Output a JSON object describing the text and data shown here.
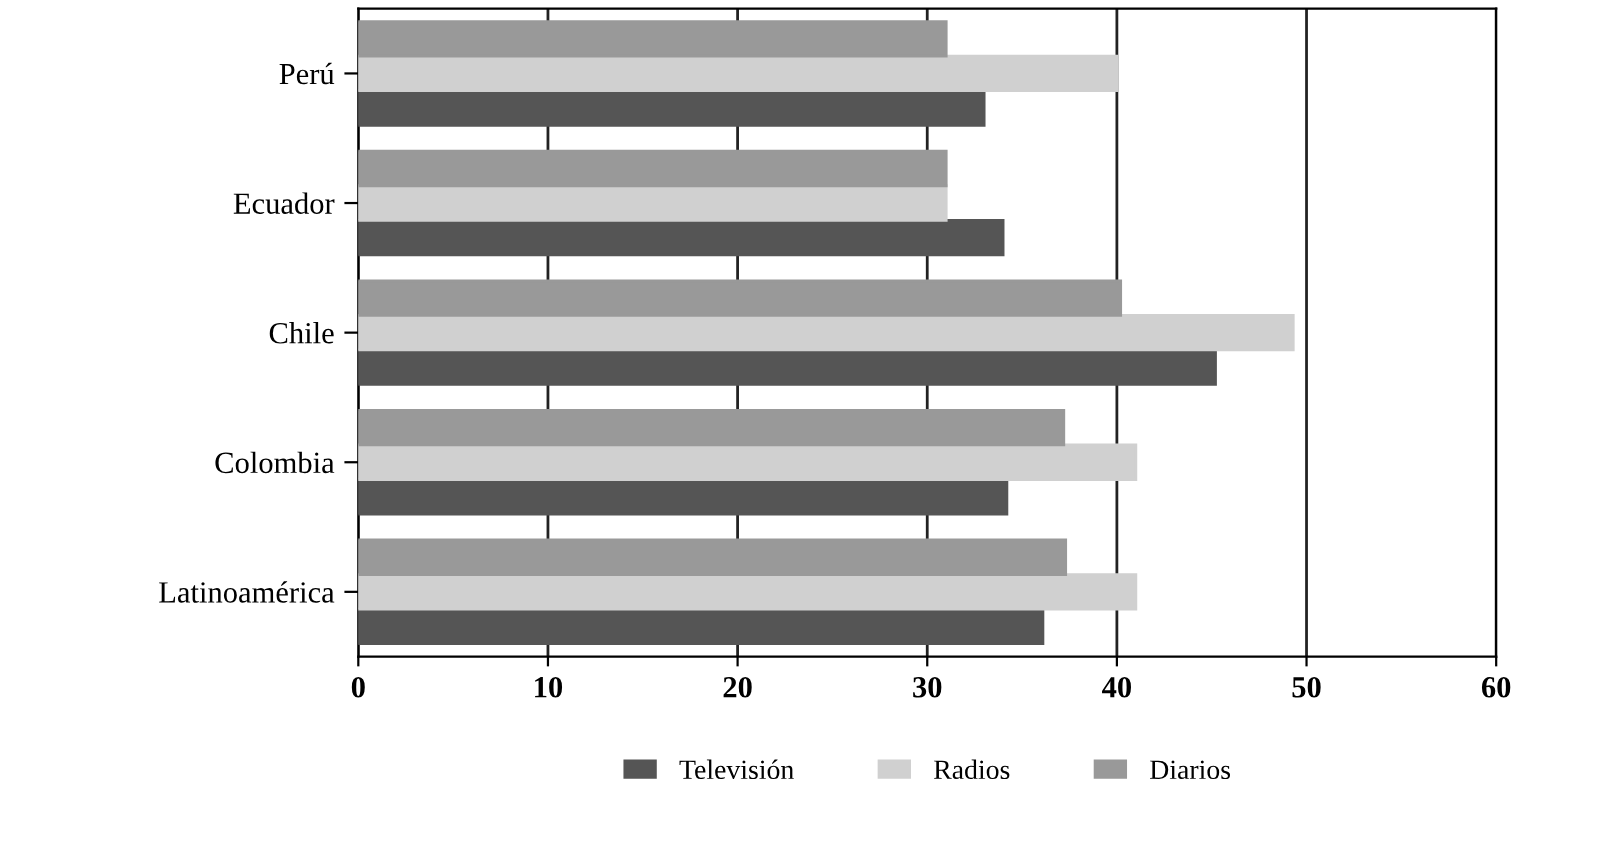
{
  "chart_data": {
    "type": "bar",
    "orientation": "horizontal",
    "categories": [
      "Perú",
      "Ecuador",
      "Chile",
      "Colombia",
      "Latinoamérica"
    ],
    "series": [
      {
        "name": "Televisión",
        "color": "#555555",
        "values": [
          33,
          34,
          45.2,
          34.2,
          36.1
        ]
      },
      {
        "name": "Radios",
        "color": "#d0d0d0",
        "values": [
          40,
          31,
          49.3,
          41,
          41
        ]
      },
      {
        "name": "Diarios",
        "color": "#999999",
        "values": [
          31,
          31,
          40.2,
          37.2,
          37.3
        ]
      }
    ],
    "xlim": [
      0,
      60
    ],
    "xticks": [
      0,
      10,
      20,
      30,
      40,
      50,
      60
    ],
    "grid": "x",
    "legend": "bottom"
  }
}
